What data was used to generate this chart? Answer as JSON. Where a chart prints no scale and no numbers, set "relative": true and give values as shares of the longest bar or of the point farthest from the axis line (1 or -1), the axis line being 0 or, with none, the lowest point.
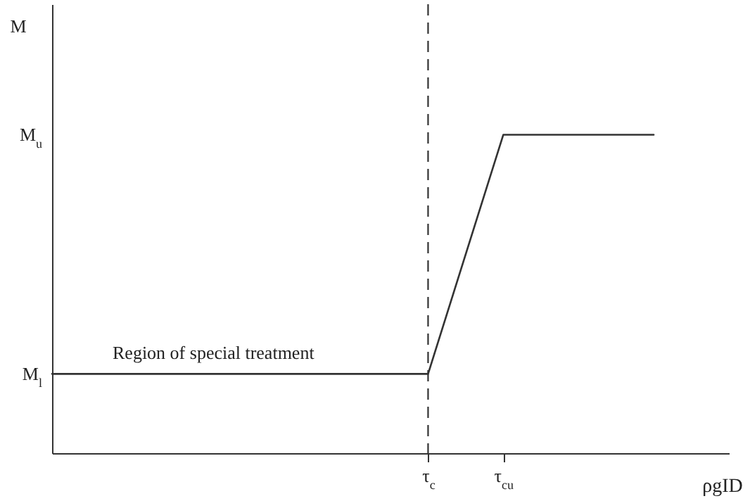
{
  "chart_data": {
    "type": "line",
    "xlabel": "ρgID",
    "relative": true,
    "categories": [
      null,
      null,
      null,
      null,
      null,
      "τ$_{c}$",
      "τ$_{cu}$",
      null,
      null,
      null
    ],
    "series": [
      {
        "color": "#333333",
        "values": [
          0.249,
          0.249,
          0.249,
          0.249,
          0.249,
          0.249,
          1,
          1,
          1,
          null
        ]
      }
    ],
    "ref_lines": [
      {
        "axis": "x",
        "value": "τ$_{c}$",
        "color": "#333333",
        "line_style": "dashed"
      }
    ],
    "annotations": [
      "Region of special treatment",
      "M$_{l}$",
      "M$_{u}$",
      "M"
    ]
  }
}
